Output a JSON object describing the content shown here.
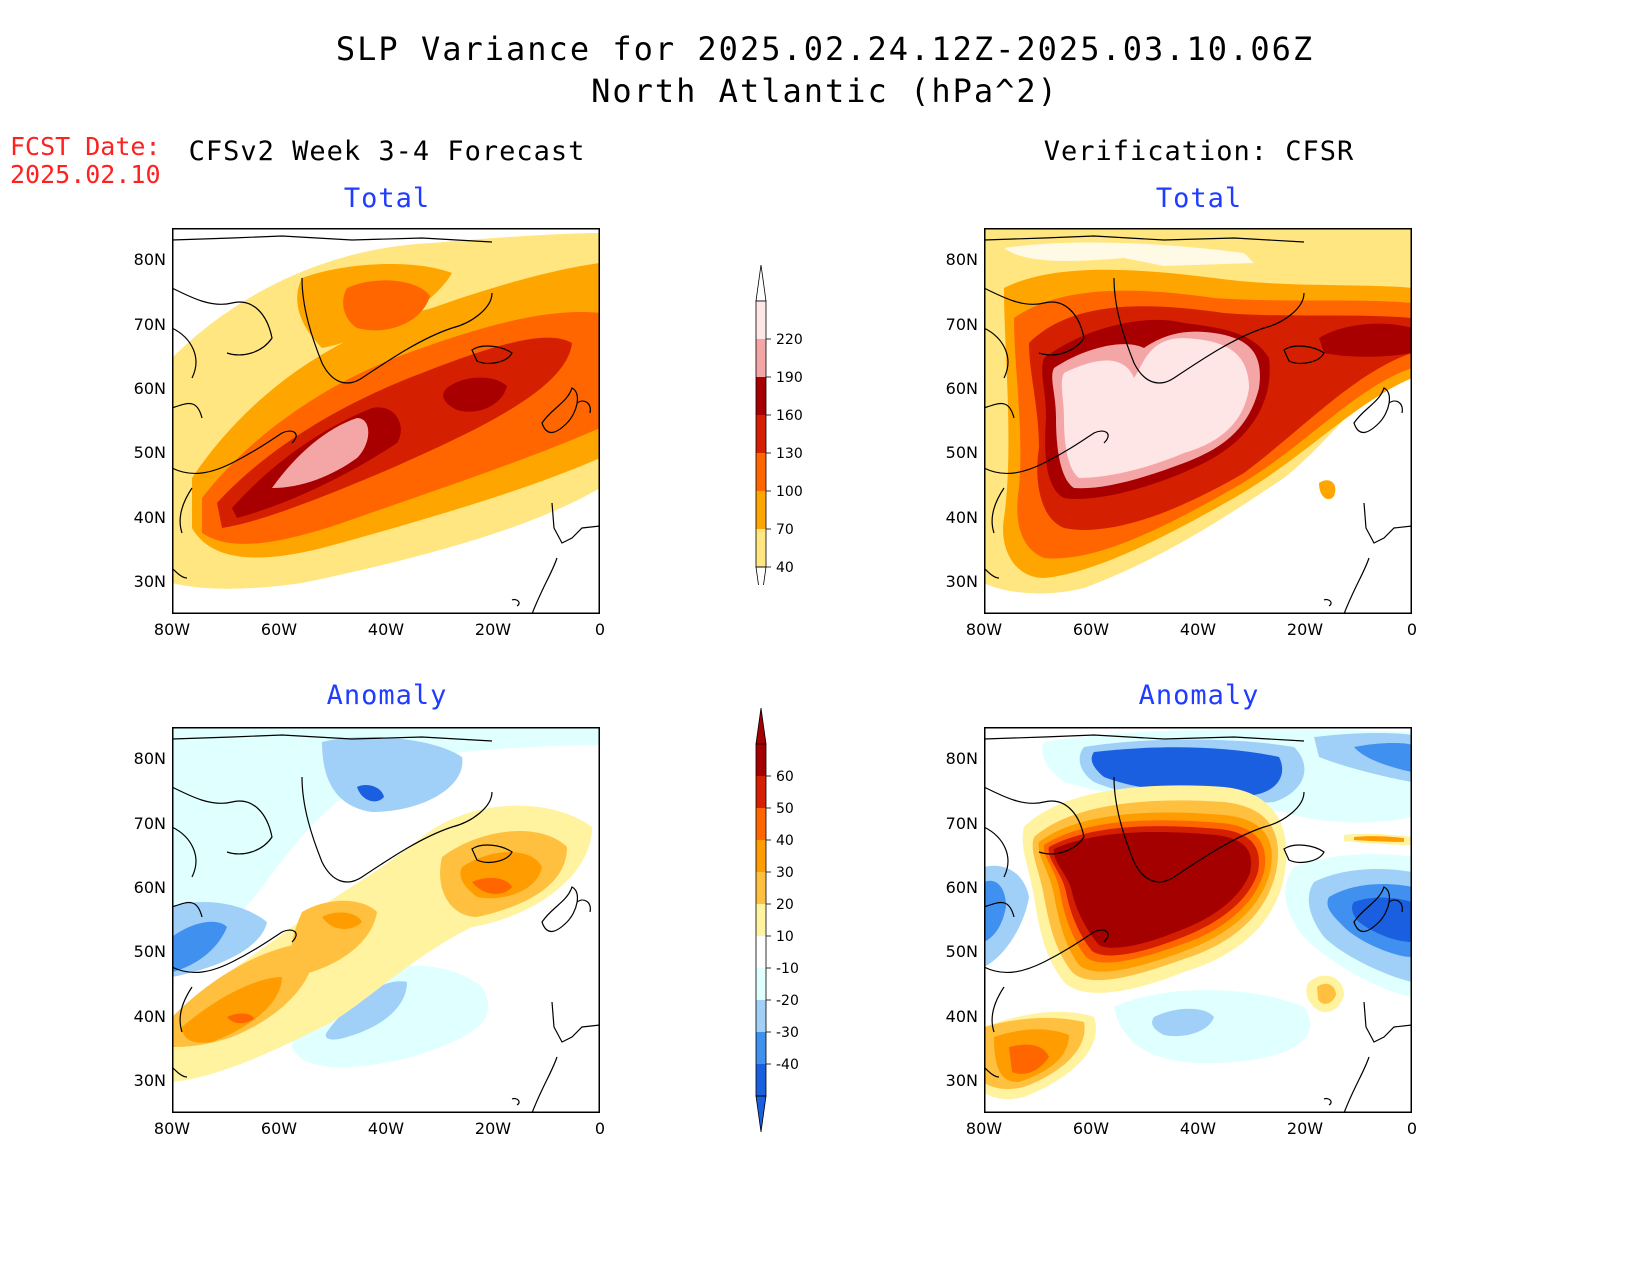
{
  "header": {
    "title_line1": "SLP Variance for 2025.02.24.12Z-2025.03.10.06Z",
    "title_line2": "North Atlantic (hPa^2)",
    "fcst_label": "FCST Date:",
    "fcst_date": "2025.02.10",
    "left_column": "CFSv2 Week 3-4 Forecast",
    "right_column": "Verification: CFSR"
  },
  "panels": {
    "fcst_total": {
      "subtitle": "Total"
    },
    "verif_total": {
      "subtitle": "Total"
    },
    "fcst_anom": {
      "subtitle": "Anomaly"
    },
    "verif_anom": {
      "subtitle": "Anomaly"
    }
  },
  "axes": {
    "lat_labels": [
      "80N",
      "70N",
      "60N",
      "50N",
      "40N",
      "30N"
    ],
    "lon_labels": [
      "80W",
      "60W",
      "40W",
      "20W",
      "0"
    ],
    "lat_range": [
      25,
      85
    ],
    "lon_range": [
      -80,
      0
    ]
  },
  "colorbars": {
    "total": {
      "levels": [
        "220",
        "190",
        "160",
        "130",
        "100",
        "70",
        "40"
      ],
      "colors": [
        "#ffe6e6",
        "#f4a6a6",
        "#a80000",
        "#d42000",
        "#ff6600",
        "#ffa500",
        "#ffe680"
      ]
    },
    "anomaly": {
      "levels": [
        "60",
        "50",
        "40",
        "30",
        "20",
        "10",
        "-10",
        "-20",
        "-30",
        "-40"
      ],
      "colors": [
        "#a50000",
        "#d42000",
        "#ff6600",
        "#ff9d00",
        "#ffc040",
        "#fff3a0",
        "#ffffff",
        "#e0ffff",
        "#a0d0f8",
        "#4090f0",
        "#1a5fe0"
      ]
    }
  },
  "colors": {
    "title_red": "#ff2020",
    "subtitle_blue": "#1f3cff"
  }
}
